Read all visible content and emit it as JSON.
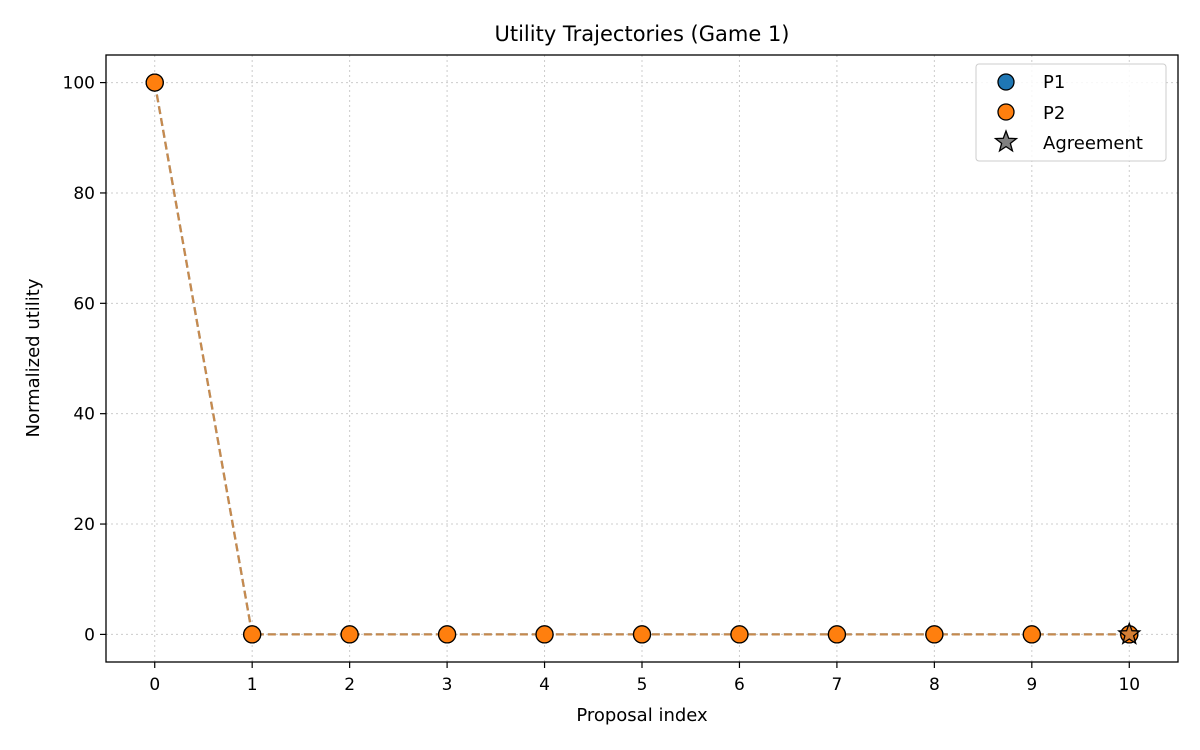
{
  "chart_data": {
    "type": "line",
    "title": "Utility Trajectories (Game 1)",
    "xlabel": "Proposal index",
    "ylabel": "Normalized utility",
    "xlim": [
      -0.5,
      10.5
    ],
    "ylim": [
      -5,
      105
    ],
    "xticks": [
      0,
      1,
      2,
      3,
      4,
      5,
      6,
      7,
      8,
      9,
      10
    ],
    "yticks": [
      0,
      20,
      40,
      60,
      80,
      100
    ],
    "grid": true,
    "legend_position": "top-right",
    "series": [
      {
        "name": "P1",
        "color": "#1f77b4",
        "line_color": "#1f77b4",
        "x": [
          0,
          1,
          2,
          3,
          4,
          5,
          6,
          7,
          8,
          9,
          10
        ],
        "y": [
          100,
          0,
          0,
          0,
          0,
          0,
          0,
          0,
          0,
          0,
          0
        ]
      },
      {
        "name": "P2",
        "color": "#ff7f0e",
        "line_color": "#cd853f",
        "x": [
          0,
          1,
          2,
          3,
          4,
          5,
          6,
          7,
          8,
          9,
          10
        ],
        "y": [
          100,
          0,
          0,
          0,
          0,
          0,
          0,
          0,
          0,
          0,
          0
        ]
      }
    ],
    "agreement": {
      "name": "Agreement",
      "color": "#808080",
      "x": 10,
      "y": 0
    }
  }
}
